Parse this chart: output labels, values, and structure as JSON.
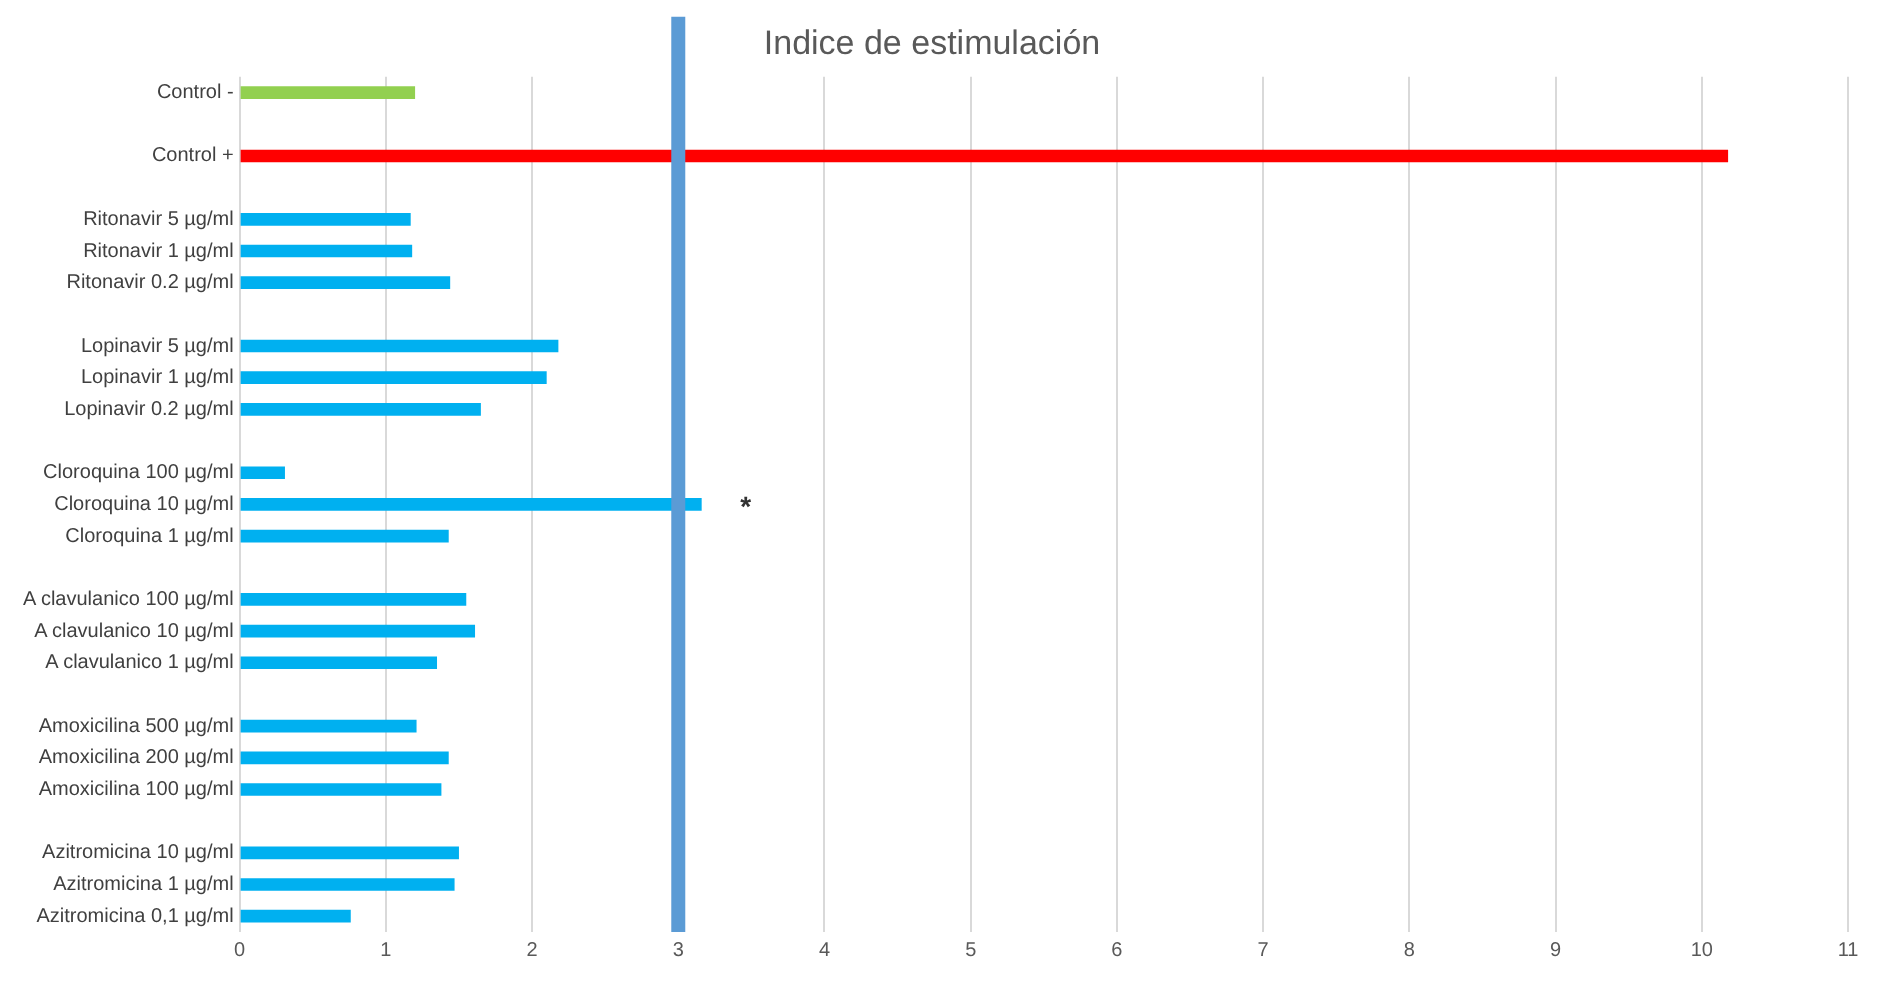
{
  "chart_data": {
    "type": "bar",
    "orientation": "horizontal",
    "title": "Indice de estimulación",
    "categories": [
      "Control -",
      null,
      "Control +",
      null,
      "Ritonavir 5 µg/ml",
      "Ritonavir 1 µg/ml",
      "Ritonavir 0.2 µg/ml",
      null,
      "Lopinavir 5 µg/ml",
      "Lopinavir 1 µg/ml",
      "Lopinavir 0.2 µg/ml",
      null,
      "Cloroquina 100 µg/ml",
      "Cloroquina 10 µg/ml",
      "Cloroquina 1 µg/ml",
      null,
      "A clavulanico 100 µg/ml",
      "A clavulanico 10 µg/ml",
      "A clavulanico 1 µg/ml",
      null,
      "Amoxicilina 500 µg/ml",
      "Amoxicilina 200 µg/ml",
      "Amoxicilina 100 µg/ml",
      null,
      "Azitromicina 10 µg/ml",
      "Azitromicina 1 µg/ml",
      "Azitromicina 0,1 µg/ml"
    ],
    "values": [
      1.2,
      null,
      10.18,
      null,
      1.17,
      1.18,
      1.44,
      null,
      2.18,
      2.1,
      1.65,
      null,
      0.31,
      3.16,
      1.43,
      null,
      1.55,
      1.61,
      1.35,
      null,
      1.21,
      1.43,
      1.38,
      null,
      1.5,
      1.47,
      0.76
    ],
    "colors": [
      "#92d050",
      null,
      "#ff0000",
      null,
      "#00b0f0",
      "#00b0f0",
      "#00b0f0",
      null,
      "#00b0f0",
      "#00b0f0",
      "#00b0f0",
      null,
      "#00b0f0",
      "#00b0f0",
      "#00b0f0",
      null,
      "#00b0f0",
      "#00b0f0",
      "#00b0f0",
      null,
      "#00b0f0",
      "#00b0f0",
      "#00b0f0",
      null,
      "#00b0f0",
      "#00b0f0",
      "#00b0f0"
    ],
    "xlim": [
      0,
      11
    ],
    "xticks": [
      0,
      1,
      2,
      3,
      4,
      5,
      6,
      7,
      8,
      9,
      10,
      11
    ],
    "grid": "x",
    "legend": false,
    "ref_lines": [
      {
        "axis": "x",
        "value": 3,
        "color": "#5b9bd5"
      }
    ],
    "annotations": [
      {
        "text": "*",
        "x": 3.16,
        "y": "Cloroquina 10 µg/ml"
      }
    ]
  }
}
